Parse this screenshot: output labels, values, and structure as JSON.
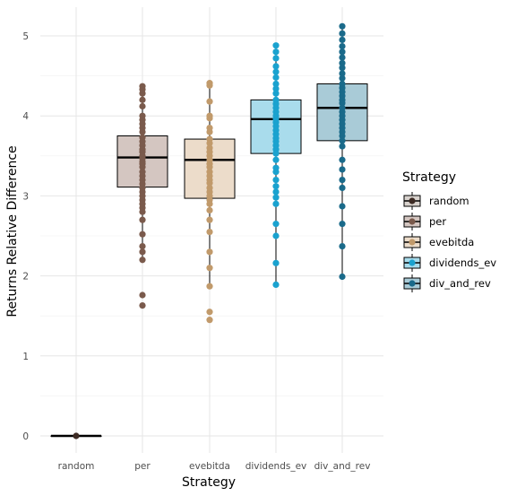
{
  "chart_data": {
    "type": "boxplot",
    "xlabel": "Strategy",
    "ylabel": "Returns Relative Difference",
    "ylim": [
      -0.25,
      5.2
    ],
    "yticks": [
      0,
      1,
      2,
      3,
      4,
      5
    ],
    "grid": true,
    "legend": {
      "title": "Strategy",
      "placement": "right"
    },
    "categories": [
      "random",
      "per",
      "evebitda",
      "dividends_ev",
      "div_and_rev"
    ],
    "series": [
      {
        "name": "random",
        "color": "#3d2b24",
        "fill": "#d8d2cd",
        "box": {
          "q1": 0.0,
          "median": 0.0,
          "q3": 0.0,
          "whisker_low": 0.0,
          "whisker_high": 0.0
        },
        "points": [
          0.0
        ]
      },
      {
        "name": "per",
        "color": "#7a5a4c",
        "fill": "#d4c6c1",
        "box": {
          "q1": 3.11,
          "median": 3.48,
          "q3": 3.75,
          "whisker_low": 2.2,
          "whisker_high": 4.37
        },
        "points": [
          4.37,
          4.33,
          4.28,
          4.2,
          4.12,
          4.0,
          3.95,
          3.9,
          3.85,
          3.8,
          3.73,
          3.68,
          3.63,
          3.58,
          3.55,
          3.5,
          3.47,
          3.43,
          3.4,
          3.36,
          3.3,
          3.25,
          3.2,
          3.15,
          3.1,
          3.05,
          3.0,
          2.95,
          2.9,
          2.85,
          2.8,
          2.7,
          2.52,
          2.37,
          2.3,
          2.2,
          1.76,
          1.63
        ]
      },
      {
        "name": "evebitda",
        "color": "#c19a6b",
        "fill": "#ecdcca",
        "box": {
          "q1": 2.97,
          "median": 3.45,
          "q3": 3.71,
          "whisker_low": 1.87,
          "whisker_high": 4.41
        },
        "points": [
          4.41,
          4.38,
          4.18,
          4.0,
          3.97,
          3.85,
          3.8,
          3.71,
          3.66,
          3.6,
          3.55,
          3.5,
          3.45,
          3.4,
          3.36,
          3.3,
          3.25,
          3.2,
          3.16,
          3.1,
          3.05,
          3.0,
          2.95,
          2.9,
          2.82,
          2.7,
          2.55,
          2.3,
          2.1,
          1.87,
          1.55,
          1.45
        ]
      },
      {
        "name": "dividends_ev",
        "color": "#1aa2cf",
        "fill": "#a9dcec",
        "box": {
          "q1": 3.53,
          "median": 3.96,
          "q3": 4.2,
          "whisker_low": 1.89,
          "whisker_high": 4.88
        },
        "points": [
          4.88,
          4.8,
          4.72,
          4.62,
          4.55,
          4.48,
          4.4,
          4.34,
          4.28,
          4.2,
          4.15,
          4.1,
          4.05,
          4.0,
          3.96,
          3.92,
          3.87,
          3.82,
          3.77,
          3.72,
          3.68,
          3.63,
          3.58,
          3.53,
          3.45,
          3.35,
          3.3,
          3.2,
          3.12,
          3.05,
          2.98,
          2.9,
          2.65,
          2.5,
          2.16,
          1.89
        ]
      },
      {
        "name": "div_and_rev",
        "color": "#1a6a8a",
        "fill": "#a9cbd7",
        "box": {
          "q1": 3.69,
          "median": 4.1,
          "q3": 4.4,
          "whisker_low": 1.99,
          "whisker_high": 5.12
        },
        "points": [
          5.12,
          5.03,
          4.95,
          4.87,
          4.8,
          4.73,
          4.66,
          4.6,
          4.53,
          4.47,
          4.4,
          4.35,
          4.3,
          4.25,
          4.2,
          4.16,
          4.1,
          4.05,
          4.0,
          3.95,
          3.9,
          3.85,
          3.8,
          3.75,
          3.69,
          3.62,
          3.45,
          3.33,
          3.2,
          3.1,
          2.87,
          2.65,
          2.37,
          1.99
        ]
      }
    ]
  }
}
